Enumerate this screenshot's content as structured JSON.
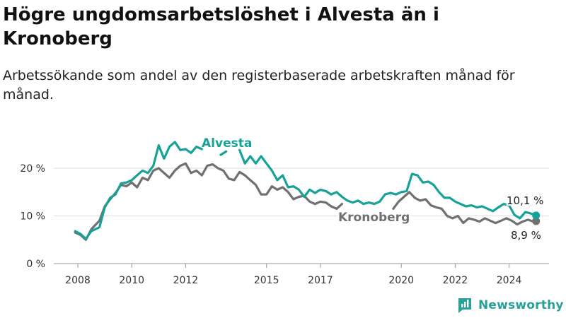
{
  "title": "Högre ungdomsarbetslöshet i Alvesta än i Kronoberg",
  "subtitle": "Arbetssökande som andel av den registerbaserade arbetskraften månad för månad.",
  "brand": "Newsworthy",
  "colors": {
    "Alvesta": "#16a297",
    "Kronoberg": "#707070",
    "grid": "#dddddd"
  },
  "chart_data": {
    "type": "line",
    "title": "Högre ungdomsarbetslöshet i Alvesta än i Kronoberg",
    "subtitle": "Arbetssökande som andel av den registerbaserade arbetskraften månad för månad.",
    "x_ticks": [
      2008,
      2010,
      2012,
      2015,
      2017,
      2020,
      2022,
      2024
    ],
    "x_tick_labels": [
      "2008",
      "2010",
      "2012",
      "2015",
      "2017",
      "2020",
      "2022",
      "2024"
    ],
    "y_ticks": [
      0,
      10,
      20
    ],
    "y_tick_labels": [
      "0 %",
      "10 %",
      "20 %"
    ],
    "ylim": [
      0,
      22
    ],
    "grid": true,
    "series": [
      {
        "name": "Alvesta",
        "end_label": "10,1 %",
        "x": [
          2007.9,
          2008.1,
          2008.3,
          2008.5,
          2008.8,
          2009.0,
          2009.2,
          2009.4,
          2009.6,
          2009.8,
          2010.0,
          2010.2,
          2010.4,
          2010.6,
          2010.8,
          2011.0,
          2011.2,
          2011.4,
          2011.6,
          2011.8,
          2012.0,
          2012.2,
          2012.4,
          2012.6,
          null,
          2013.3,
          2013.5,
          null,
          2014.0,
          2014.2,
          2014.4,
          2014.6,
          2014.8,
          2015.0,
          2015.2,
          2015.4,
          2015.6,
          2015.8,
          2016.0,
          2016.2,
          2016.4,
          2016.6,
          2016.8,
          2017.0,
          2017.2,
          2017.4,
          2017.6,
          2017.8,
          2018.0,
          2018.2,
          2018.4,
          2018.6,
          2018.8,
          2019.0,
          2019.2,
          2019.4,
          2019.6,
          2019.8,
          2020.0,
          2020.2,
          2020.4,
          2020.6,
          2020.8,
          2021.0,
          2021.2,
          2021.4,
          2021.6,
          2021.8,
          2022.0,
          2022.2,
          2022.4,
          2022.6,
          2022.8,
          2023.0,
          2023.2,
          2023.4,
          2023.6,
          2023.8,
          2024.0,
          2024.2,
          2024.4,
          2024.6,
          2024.8,
          2025.0
        ],
        "y": [
          6.8,
          6.2,
          5.2,
          6.8,
          7.6,
          11.8,
          13.8,
          14.5,
          16.8,
          17.0,
          17.5,
          18.5,
          19.5,
          19.0,
          20.5,
          24.8,
          22.0,
          24.5,
          25.5,
          23.8,
          24.0,
          23.2,
          24.5,
          24.0,
          null,
          22.8,
          23.5,
          null,
          23.8,
          21.0,
          22.5,
          21.0,
          22.5,
          21.0,
          19.5,
          17.5,
          18.5,
          16.0,
          16.2,
          15.5,
          14.0,
          15.5,
          14.8,
          15.5,
          15.2,
          14.5,
          15.0,
          14.0,
          13.2,
          12.8,
          13.2,
          12.5,
          12.8,
          12.5,
          13.0,
          14.5,
          14.8,
          14.5,
          15.0,
          15.2,
          18.8,
          18.5,
          17.0,
          17.2,
          16.5,
          15.0,
          13.8,
          13.8,
          13.0,
          12.5,
          12.0,
          12.2,
          11.8,
          12.0,
          11.5,
          11.0,
          11.8,
          12.5,
          12.2,
          10.2,
          9.5,
          10.8,
          10.5,
          10.1
        ]
      },
      {
        "name": "Kronoberg",
        "end_label": "8,9 %",
        "x": [
          2007.9,
          2008.1,
          2008.3,
          2008.5,
          2008.8,
          2009.0,
          2009.2,
          2009.4,
          2009.6,
          2009.8,
          2010.0,
          2010.2,
          2010.4,
          2010.6,
          2010.8,
          2011.0,
          2011.2,
          2011.4,
          2011.6,
          2011.8,
          2012.0,
          2012.2,
          2012.4,
          2012.6,
          2012.8,
          2013.0,
          2013.2,
          2013.4,
          2013.6,
          2013.8,
          2014.0,
          2014.2,
          2014.4,
          2014.6,
          2014.8,
          2015.0,
          2015.2,
          2015.4,
          2015.6,
          2015.8,
          2016.0,
          2016.2,
          2016.4,
          2016.6,
          2016.8,
          2017.0,
          2017.2,
          2017.4,
          2017.6,
          2017.8,
          null,
          2019.7,
          2019.9,
          2020.1,
          2020.3,
          2020.5,
          2020.7,
          2020.9,
          2021.1,
          2021.3,
          2021.5,
          2021.7,
          2021.9,
          2022.1,
          2022.3,
          2022.5,
          2022.7,
          2022.9,
          2023.1,
          2023.3,
          2023.5,
          2023.7,
          2023.9,
          2024.1,
          2024.3,
          2024.5,
          2024.7,
          2024.9,
          2025.0
        ],
        "y": [
          6.5,
          6.0,
          5.0,
          7.2,
          9.0,
          12.0,
          13.5,
          14.8,
          16.5,
          16.2,
          17.0,
          16.0,
          18.0,
          17.5,
          19.5,
          20.0,
          19.0,
          18.0,
          19.5,
          20.5,
          21.0,
          19.0,
          19.5,
          18.5,
          20.5,
          20.8,
          20.0,
          19.5,
          17.8,
          17.5,
          19.2,
          18.5,
          17.5,
          16.5,
          14.5,
          14.5,
          16.2,
          15.5,
          16.0,
          15.0,
          13.5,
          14.0,
          14.2,
          13.0,
          12.5,
          13.0,
          12.8,
          12.0,
          11.5,
          12.5,
          null,
          11.5,
          13.0,
          14.0,
          15.0,
          13.8,
          13.2,
          13.5,
          12.2,
          11.8,
          11.5,
          10.0,
          9.5,
          10.0,
          8.5,
          9.5,
          9.2,
          8.8,
          9.5,
          9.0,
          8.5,
          9.0,
          9.5,
          9.0,
          8.2,
          8.8,
          9.2,
          8.8,
          8.9
        ]
      }
    ]
  }
}
